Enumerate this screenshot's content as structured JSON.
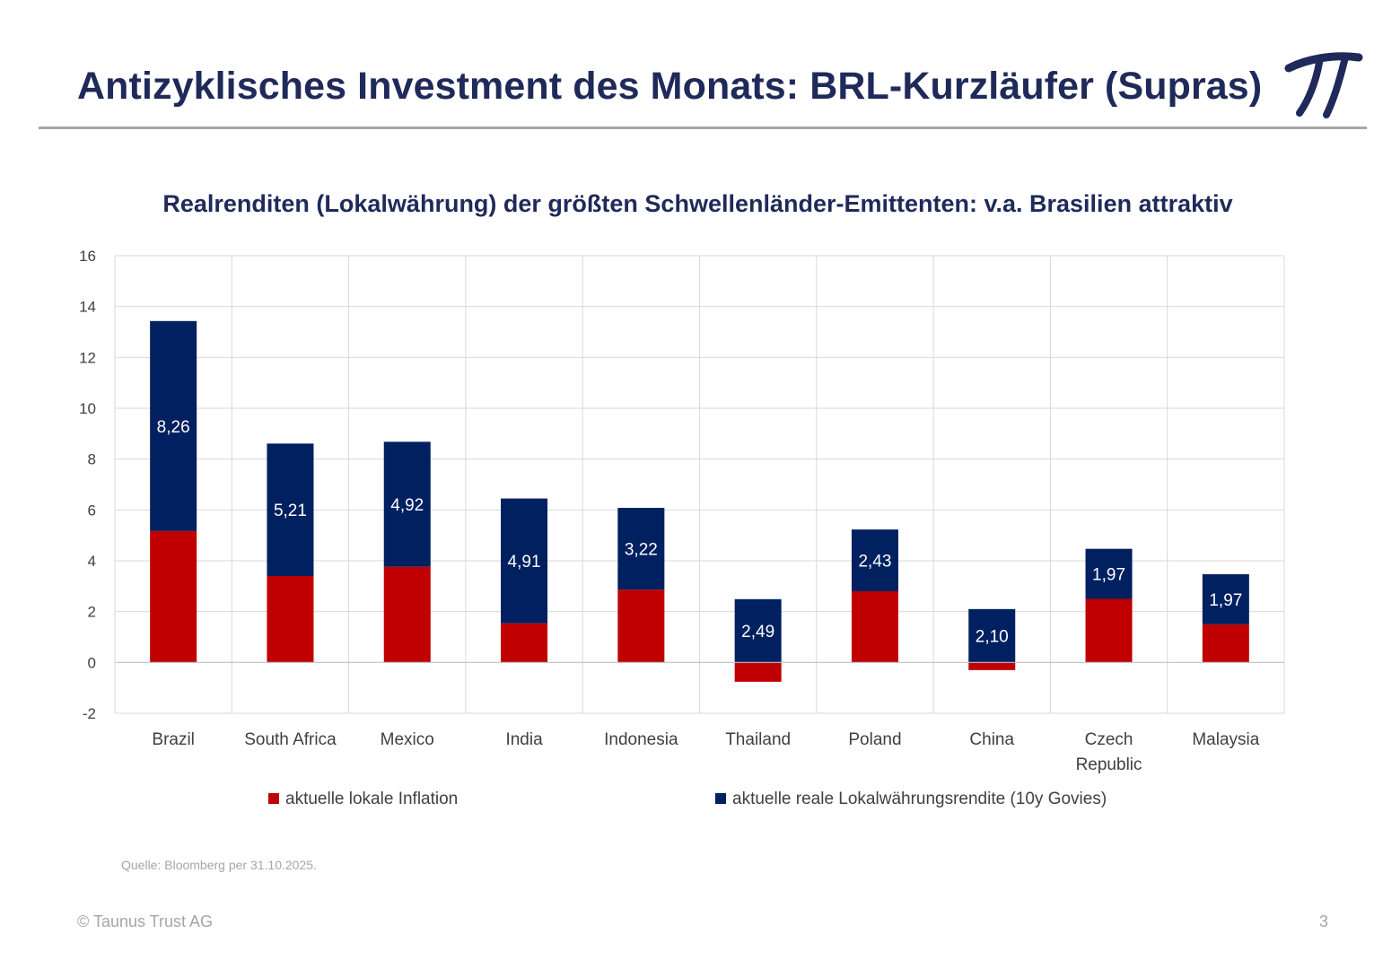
{
  "header": {
    "title": "Antizyklisches Investment des Monats: BRL-Kurzläufer (Supras)",
    "logo_glyph": "π"
  },
  "chart_data": {
    "type": "bar",
    "stacked": true,
    "title": "Realrenditen (Lokalwährung) der größten Schwellenländer-Emittenten: v.a. Brasilien attraktiv",
    "categories": [
      "Brazil",
      "South Africa",
      "Mexico",
      "India",
      "Indonesia",
      "Thailand",
      "Poland",
      "China",
      "Czech Republic",
      "Malaysia"
    ],
    "category_label_lines": [
      [
        "Brazil"
      ],
      [
        "South Africa"
      ],
      [
        "Mexico"
      ],
      [
        "India"
      ],
      [
        "Indonesia"
      ],
      [
        "Thailand"
      ],
      [
        "Poland"
      ],
      [
        "China"
      ],
      [
        "Czech",
        "Republic"
      ],
      [
        "Malaysia"
      ]
    ],
    "series": [
      {
        "name": "aktuelle lokale Inflation",
        "color": "#c00000",
        "values": [
          5.17,
          3.4,
          3.76,
          1.54,
          2.86,
          -0.76,
          2.8,
          -0.3,
          2.5,
          1.5
        ]
      },
      {
        "name": "aktuelle reale Lokalwährungsrendite (10y Govies)",
        "color": "#002060",
        "values": [
          8.26,
          5.21,
          4.92,
          4.91,
          3.22,
          2.49,
          2.43,
          2.1,
          1.97,
          1.97
        ],
        "labels": [
          "8,26",
          "5,21",
          "4,92",
          "4,91",
          "3,22",
          "2,49",
          "2,43",
          "2,10",
          "1,97",
          "1,97"
        ]
      }
    ],
    "ylim": [
      -2,
      16
    ],
    "yticks": [
      -2,
      0,
      2,
      4,
      6,
      8,
      10,
      12,
      14,
      16
    ],
    "grid": true,
    "xlabel": "",
    "ylabel": "",
    "legend_position": "bottom"
  },
  "footer": {
    "source": "Quelle: Bloomberg per 31.10.2025.",
    "copyright": "© Taunus Trust AG",
    "page_number": "3"
  },
  "colors": {
    "title": "#1f2a5a",
    "grid": "#d9d9d9",
    "axis_text": "#404040",
    "footer_text": "#a6a6a6"
  }
}
